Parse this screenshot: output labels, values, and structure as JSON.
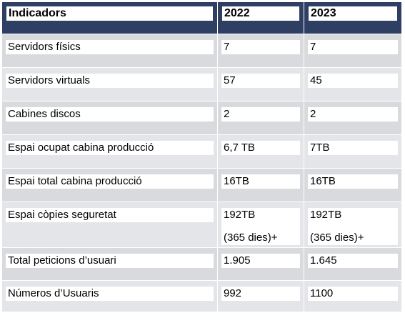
{
  "table": {
    "headers": [
      "Indicadors",
      "2022",
      "2023"
    ],
    "rows": [
      {
        "label": "Servidors físics",
        "v2022": "7",
        "v2023": "7"
      },
      {
        "label": "Servidors virtuals",
        "v2022": "57",
        "v2023": "45"
      },
      {
        "label": "Cabines discos",
        "v2022": "2",
        "v2023": "2"
      },
      {
        "label": "Espai ocupat cabina producció",
        "v2022": "6,7 TB",
        "v2023": "7TB"
      },
      {
        "label": "Espai total cabina producció",
        "v2022": "16TB",
        "v2023": "16TB"
      },
      {
        "label": "Espai còpies seguretat",
        "v2022": "192TB",
        "v2022_note": "(365 dies)+",
        "v2023": "192TB",
        "v2023_note": "(365 dies)+"
      },
      {
        "label": "Total peticions d’usuari",
        "v2022": "1.905",
        "v2023": "1.645"
      },
      {
        "label": "Números d’Usuaris",
        "v2022": "992",
        "v2023": "1100"
      }
    ]
  }
}
